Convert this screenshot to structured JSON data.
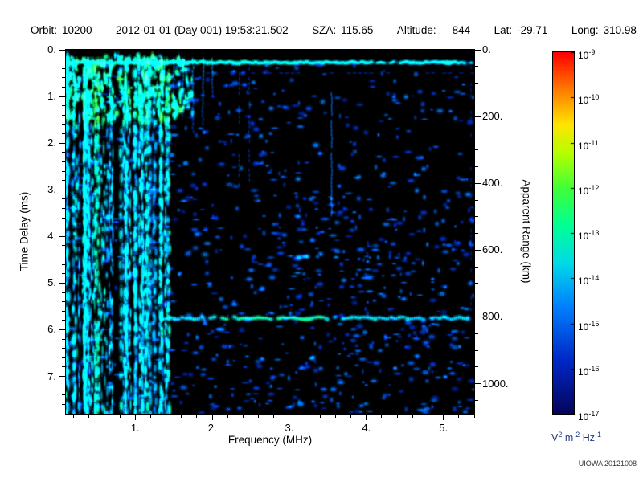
{
  "header": {
    "orbit_label": "Orbit:",
    "orbit_value": "10200",
    "datetime": "2012-01-01 (Day 001) 19:53:21.502",
    "sza_label": "SZA:",
    "sza_value": "115.65",
    "altitude_label": "Altitude:",
    "altitude_value": "844",
    "lat_label": "Lat:",
    "lat_value": "-29.71",
    "long_label": "Long:",
    "long_value": "310.98"
  },
  "watermark": "UIOWA 20121008",
  "chart_data": {
    "type": "heatmap",
    "title": "Radar sounder ionogram (time delay vs frequency, log power color scale)",
    "xlabel": "Frequency (MHz)",
    "ylabel_left": "Time Delay (ms)",
    "ylabel_right": "Apparent Range (km)",
    "x_range_mhz": [
      0.1,
      5.4
    ],
    "y_range_ms": [
      0.0,
      7.8
    ],
    "y2_range_km": [
      0.0,
      1090.0
    ],
    "x_ticks": [
      1,
      2,
      3,
      4,
      5
    ],
    "x_tick_labels": [
      "1.",
      "2.",
      "3.",
      "4.",
      "5."
    ],
    "x_minor_step_mhz": 0.2,
    "y_ticks": [
      0,
      1,
      2,
      3,
      4,
      5,
      6,
      7
    ],
    "y_tick_labels": [
      "0.",
      "1.",
      "2.",
      "3.",
      "4.",
      "5.",
      "6.",
      "7."
    ],
    "y_minor_step_ms": 0.2,
    "y2_ticks": [
      0,
      200,
      400,
      600,
      800,
      1000
    ],
    "y2_tick_labels": [
      "0.",
      "200.",
      "400.",
      "600.",
      "800.",
      "1000."
    ],
    "y2_minor_step_km": 50,
    "grid": false,
    "background_color": "#000000",
    "colorbar": {
      "unit_label": "V^2 m^-2 Hz^-1",
      "unit_parts": [
        {
          "t": "V",
          "sup": false
        },
        {
          "t": "2",
          "sup": true
        },
        {
          "t": " m",
          "sup": false
        },
        {
          "t": "-2",
          "sup": true
        },
        {
          "t": " Hz",
          "sup": false
        },
        {
          "t": "-1",
          "sup": true
        }
      ],
      "exponents": [
        -9,
        -10,
        -11,
        -12,
        -13,
        -14,
        -15,
        -16,
        -17
      ],
      "top_value": "1e-9",
      "bottom_value": "1e-17",
      "colors_top_to_bottom": [
        "#ff0000",
        "#ff7800",
        "#ffe600",
        "#b4ff00",
        "#3cff3c",
        "#00ff96",
        "#00dce6",
        "#0082ff",
        "#0028c8",
        "#05055a"
      ]
    },
    "features": [
      {
        "name": "first-echo-band",
        "time_delay_ms": 0.27,
        "freq_span_mhz": [
          0.1,
          5.4
        ],
        "intensity": "high",
        "color": "green-cyan"
      },
      {
        "name": "second-echo-band",
        "time_delay_ms": 5.75,
        "freq_span_mhz": [
          1.35,
          5.4
        ],
        "intensity": "medium",
        "color": "cyan-green"
      },
      {
        "name": "low-freq-striations",
        "freq_span_mhz": [
          0.1,
          1.45
        ],
        "time_span_ms": [
          0.1,
          7.8
        ],
        "intensity": "medium-high",
        "color": "cyan-green vertical stripes"
      },
      {
        "name": "interference-line",
        "freq_mhz": 3.55,
        "time_span_ms": [
          0.95,
          3.6
        ],
        "intensity": "low",
        "color": "blue"
      },
      {
        "name": "diffuse-scatter",
        "description": "sparse dark-blue speckle over black background, denser below 3 MHz and in lower-right region",
        "intensity": "low"
      }
    ]
  }
}
